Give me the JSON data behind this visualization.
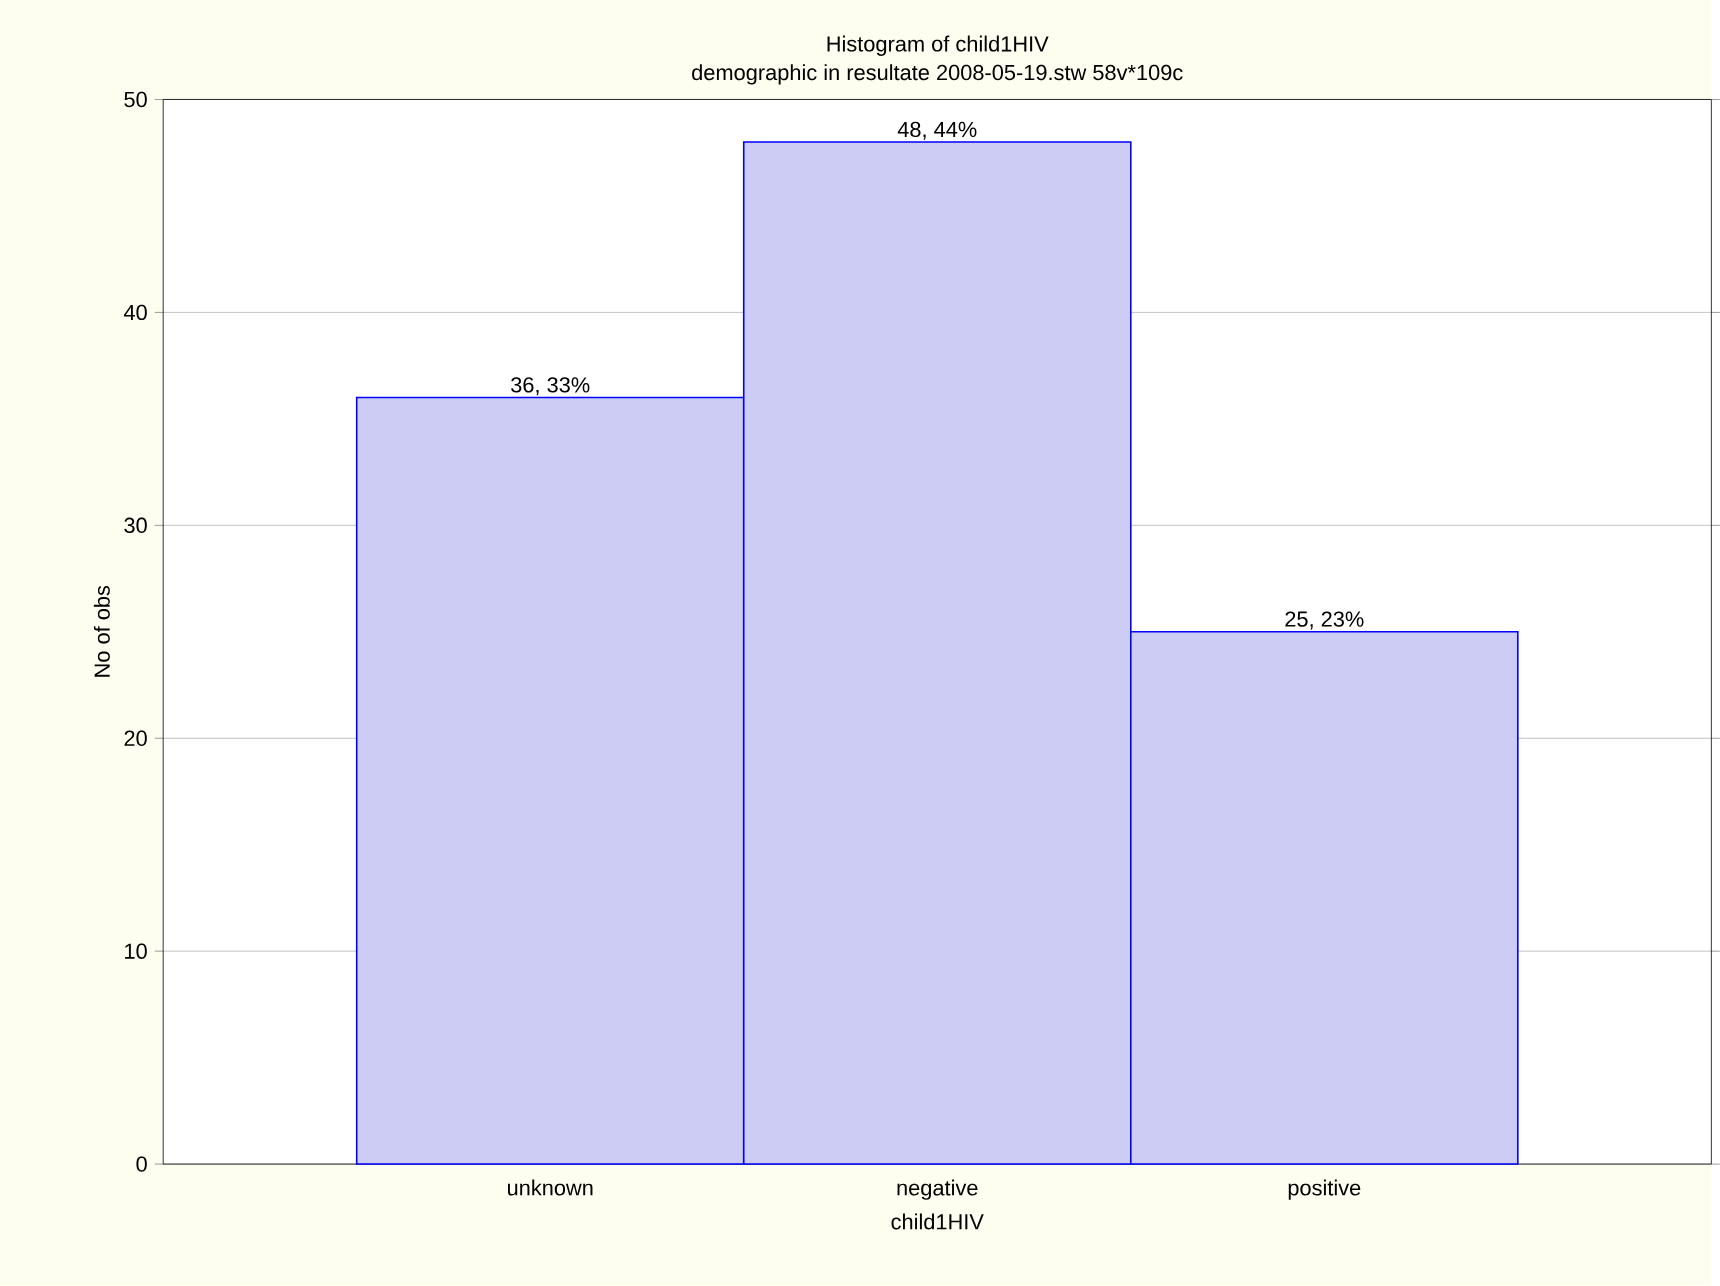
{
  "chart_data": {
    "type": "bar",
    "title": "Histogram of child1HIV",
    "subtitle": "demographic in resultate 2008-05-19.stw 58v*109c",
    "xlabel": "child1HIV",
    "ylabel": "No of obs",
    "categories": [
      "unknown",
      "negative",
      "positive"
    ],
    "values": [
      36,
      48,
      25
    ],
    "value_labels": [
      "36, 33%",
      "48, 44%",
      "25, 23%"
    ],
    "color": "#ccccf4",
    "ylim": [
      0,
      50
    ],
    "yticks": [
      0,
      10,
      20,
      30,
      40,
      50
    ],
    "grid": "y"
  }
}
